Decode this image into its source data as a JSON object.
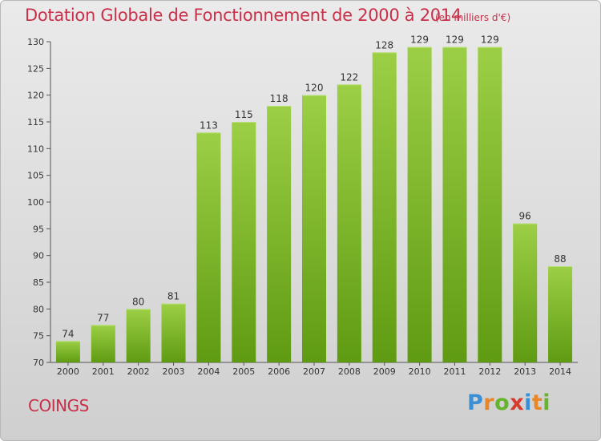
{
  "header": {
    "title": "Dotation Globale de Fonctionnement de 2000 à 2014",
    "unit": "(en milliers d'€)"
  },
  "footer": {
    "commune": "COINGS",
    "logo_text": "Proxiti"
  },
  "colors": {
    "title": "#c8304a",
    "bar_light": "#9ccf45",
    "bar_dark": "#5f9b12"
  },
  "chart_data": {
    "type": "bar",
    "categories": [
      "2000",
      "2001",
      "2002",
      "2003",
      "2004",
      "2005",
      "2006",
      "2007",
      "2008",
      "2009",
      "2010",
      "2011",
      "2012",
      "2013",
      "2014"
    ],
    "values": [
      74,
      77,
      80,
      81,
      113,
      115,
      118,
      120,
      122,
      128,
      129,
      129,
      129,
      96,
      88
    ],
    "title": "Dotation Globale de Fonctionnement de 2000 à 2014",
    "ylim": [
      70,
      130
    ],
    "yticks": [
      70,
      75,
      80,
      85,
      90,
      95,
      100,
      105,
      110,
      115,
      120,
      125,
      130
    ],
    "grid": false,
    "data_labels": true
  }
}
